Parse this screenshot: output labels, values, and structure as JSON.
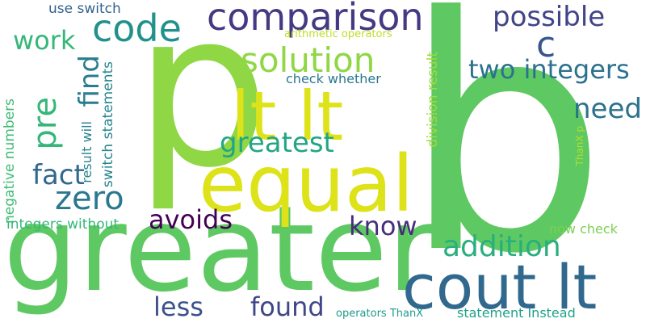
{
  "words": [
    {
      "text": "greater",
      "color": "#5ec962"
    },
    {
      "text": "b",
      "color": "#5ec962"
    },
    {
      "text": "p",
      "color": "#8fd744"
    },
    {
      "text": "equal",
      "color": "#dde318"
    },
    {
      "text": "lt lt",
      "color": "#dde318"
    },
    {
      "text": "cout lt",
      "color": "#31688e"
    },
    {
      "text": "comparison",
      "color": "#443a83"
    },
    {
      "text": "code",
      "color": "#21918c"
    },
    {
      "text": "solution",
      "color": "#8fd744"
    },
    {
      "text": "possible",
      "color": "#414487"
    },
    {
      "text": "c",
      "color": "#39568c"
    },
    {
      "text": "two integers",
      "color": "#2c728e"
    },
    {
      "text": "need",
      "color": "#2c728e"
    },
    {
      "text": "work",
      "color": "#35b779"
    },
    {
      "text": "pre",
      "color": "#35b779"
    },
    {
      "text": "find",
      "color": "#287d8e"
    },
    {
      "text": "fact",
      "color": "#31688e"
    },
    {
      "text": "zero",
      "color": "#2a788e"
    },
    {
      "text": "greatest",
      "color": "#21a585"
    },
    {
      "text": "avoids",
      "color": "#440154"
    },
    {
      "text": "know",
      "color": "#472d7b"
    },
    {
      "text": "addition",
      "color": "#29af7f"
    },
    {
      "text": "less",
      "color": "#3b528b"
    },
    {
      "text": "found",
      "color": "#404688"
    },
    {
      "text": "use switch",
      "color": "#33638d"
    },
    {
      "text": "arithmetic operators",
      "color": "#bddf26"
    },
    {
      "text": "check whether",
      "color": "#2a788e"
    },
    {
      "text": "result will",
      "color": "#26828e"
    },
    {
      "text": "switch statements",
      "color": "#25858e"
    },
    {
      "text": "negative numbers",
      "color": "#3dbc74"
    },
    {
      "text": "integers without",
      "color": "#35b779"
    },
    {
      "text": "division result",
      "color": "#a0da39"
    },
    {
      "text": "ThanX p",
      "color": "#b5de2b"
    },
    {
      "text": "now check",
      "color": "#7ad151"
    },
    {
      "text": "operators ThanX",
      "color": "#1f9a8a"
    },
    {
      "text": "statement Instead",
      "color": "#1fa188"
    }
  ]
}
